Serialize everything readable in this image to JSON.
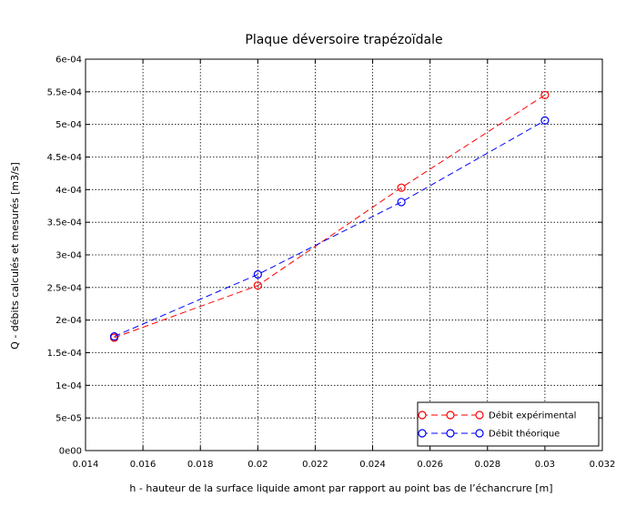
{
  "chart_data": {
    "type": "line",
    "title": "Plaque déversoire trapézoïdale",
    "xlabel": "h - hauteur de la surface liquide amont par rapport au point bas de l’échancrure [m]",
    "ylabel": "Q - débits calculés et mesurés [m3/s]",
    "xlim": [
      0.014,
      0.032
    ],
    "ylim": [
      0,
      0.0006
    ],
    "x_ticks": [
      "0.014",
      "0.016",
      "0.018",
      "0.02",
      "0.022",
      "0.024",
      "0.026",
      "0.028",
      "0.03",
      "0.032"
    ],
    "y_ticks": [
      "0e00",
      "5e-05",
      "1e-04",
      "1.5e-04",
      "2e-04",
      "2.5e-04",
      "3e-04",
      "3.5e-04",
      "4e-04",
      "4.5e-04",
      "5e-04",
      "5.5e-04",
      "6e-04"
    ],
    "x": [
      0.015,
      0.02,
      0.025,
      0.03
    ],
    "series": [
      {
        "name": "Débit expérimental",
        "values": [
          0.000173,
          0.000253,
          0.000403,
          0.000545
        ],
        "color": "#ff0000"
      },
      {
        "name": "Débit théorique",
        "values": [
          0.000175,
          0.00027,
          0.000381,
          0.000506
        ],
        "color": "#0000ff"
      }
    ],
    "grid": true,
    "legend_position": "bottom-right",
    "line_style": "dashed",
    "marker": "open-circle"
  }
}
